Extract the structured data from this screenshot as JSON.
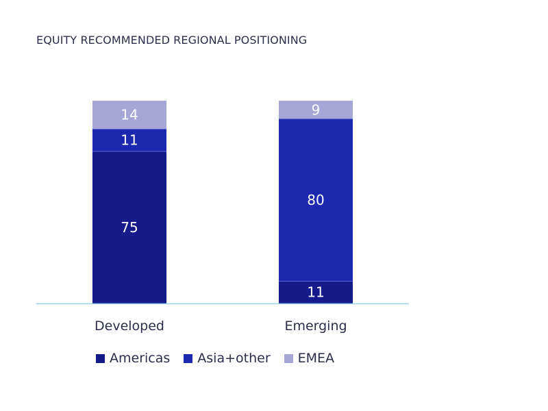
{
  "chart_data": {
    "type": "bar",
    "stacked": true,
    "title": "EQUITY RECOMMENDED REGIONAL POSITIONING",
    "categories": [
      "Developed",
      "Emerging"
    ],
    "series": [
      {
        "name": "Americas",
        "values": [
          75,
          11
        ],
        "color": "#151b8a"
      },
      {
        "name": "Asia+other",
        "values": [
          11,
          80
        ],
        "color": "#1c28b0"
      },
      {
        "name": "EMEA",
        "values": [
          14,
          9
        ],
        "color": "#a5a6d6"
      }
    ],
    "ylim": [
      0,
      100
    ],
    "grid": false,
    "legend_position": "bottom"
  }
}
